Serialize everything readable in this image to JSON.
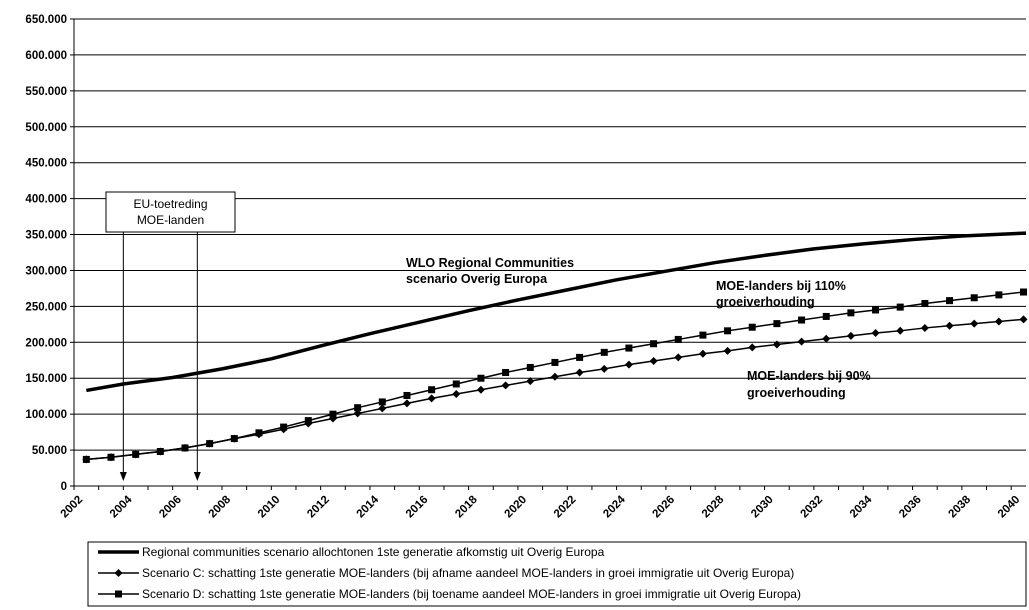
{
  "chart_data": {
    "type": "line",
    "title": "",
    "xlabel": "",
    "ylabel": "",
    "xlim": [
      2002,
      2040.6
    ],
    "ylim": [
      0,
      650000
    ],
    "y_ticks": [
      "0",
      "50.000",
      "100.000",
      "150.000",
      "200.000",
      "250.000",
      "300.000",
      "350.000",
      "400.000",
      "450.000",
      "500.000",
      "550.000",
      "600.000",
      "650.000"
    ],
    "x_ticks": [
      "2002",
      "2004",
      "2006",
      "2008",
      "2010",
      "2012",
      "2014",
      "2016",
      "2018",
      "2020",
      "2022",
      "2024",
      "2026",
      "2028",
      "2030",
      "2032",
      "2034",
      "2036",
      "2038",
      "2040"
    ],
    "grid": "horizontal",
    "legend_position": "bottom",
    "series": [
      {
        "name": "Regional communities scenario allochtonen 1ste generatie afkomstig uit Overig Europa",
        "marker": "none",
        "x": [
          2002.5,
          2004,
          2006,
          2008,
          2010,
          2012,
          2014,
          2016,
          2018,
          2020,
          2022,
          2024,
          2026,
          2028,
          2030,
          2032,
          2034,
          2036,
          2038,
          2040.6
        ],
        "values": [
          133000,
          142000,
          151000,
          163000,
          177000,
          195000,
          212000,
          228000,
          244000,
          259000,
          273000,
          287000,
          299000,
          311000,
          321000,
          330000,
          337000,
          343000,
          348000,
          352000
        ]
      },
      {
        "name": "Scenario C: schatting 1ste generatie MOE-landers (bij afname aandeel MOE-landers in groei immigratie uit Overig Europa)",
        "marker": "diamond",
        "x": [
          2002.5,
          2003.5,
          2004.5,
          2005.5,
          2006.5,
          2007.5,
          2008.5,
          2009.5,
          2010.5,
          2011.5,
          2012.5,
          2013.5,
          2014.5,
          2015.5,
          2016.5,
          2017.5,
          2018.5,
          2019.5,
          2020.5,
          2021.5,
          2022.5,
          2023.5,
          2024.5,
          2025.5,
          2026.5,
          2027.5,
          2028.5,
          2029.5,
          2030.5,
          2031.5,
          2032.5,
          2033.5,
          2034.5,
          2035.5,
          2036.5,
          2037.5,
          2038.5,
          2039.5,
          2040.5
        ],
        "values": [
          37000,
          40000,
          44000,
          48000,
          53000,
          59000,
          66000,
          72000,
          79000,
          87000,
          94000,
          101000,
          108000,
          115000,
          122000,
          128000,
          134000,
          140000,
          146000,
          152000,
          158000,
          163000,
          169000,
          174000,
          179000,
          184000,
          188000,
          193000,
          197000,
          201000,
          205000,
          209000,
          213000,
          216000,
          220000,
          223000,
          226000,
          229000,
          232000
        ]
      },
      {
        "name": "Scenario D: schatting 1ste generatie MOE-landers (bij toename aandeel MOE-landers in groei immigratie uit Overig Europa)",
        "marker": "square",
        "x": [
          2002.5,
          2003.5,
          2004.5,
          2005.5,
          2006.5,
          2007.5,
          2008.5,
          2009.5,
          2010.5,
          2011.5,
          2012.5,
          2013.5,
          2014.5,
          2015.5,
          2016.5,
          2017.5,
          2018.5,
          2019.5,
          2020.5,
          2021.5,
          2022.5,
          2023.5,
          2024.5,
          2025.5,
          2026.5,
          2027.5,
          2028.5,
          2029.5,
          2030.5,
          2031.5,
          2032.5,
          2033.5,
          2034.5,
          2035.5,
          2036.5,
          2037.5,
          2038.5,
          2039.5,
          2040.5
        ],
        "values": [
          37000,
          40000,
          44000,
          48000,
          53000,
          59000,
          66000,
          74000,
          82000,
          91000,
          100000,
          109000,
          117000,
          126000,
          134000,
          142000,
          150000,
          158000,
          165000,
          172000,
          179000,
          186000,
          192000,
          198000,
          204000,
          210000,
          216000,
          221000,
          226000,
          231000,
          236000,
          241000,
          245000,
          249000,
          254000,
          258000,
          262000,
          266000,
          270000
        ]
      }
    ],
    "annotations": [
      {
        "id": "wlo",
        "lines": [
          "WLO Regional Communities",
          "scenario Overig Europa"
        ]
      },
      {
        "id": "moe110",
        "lines": [
          "MOE-landers bij 110%",
          "groeiverhouding"
        ]
      },
      {
        "id": "moe90",
        "lines": [
          "MOE-landers bij 90%",
          "groeiverhouding"
        ]
      },
      {
        "id": "eu",
        "lines": [
          "EU-toetreding",
          "MOE-landen"
        ],
        "boxed": true,
        "arrows_at_x": [
          2004,
          2007
        ]
      }
    ]
  }
}
